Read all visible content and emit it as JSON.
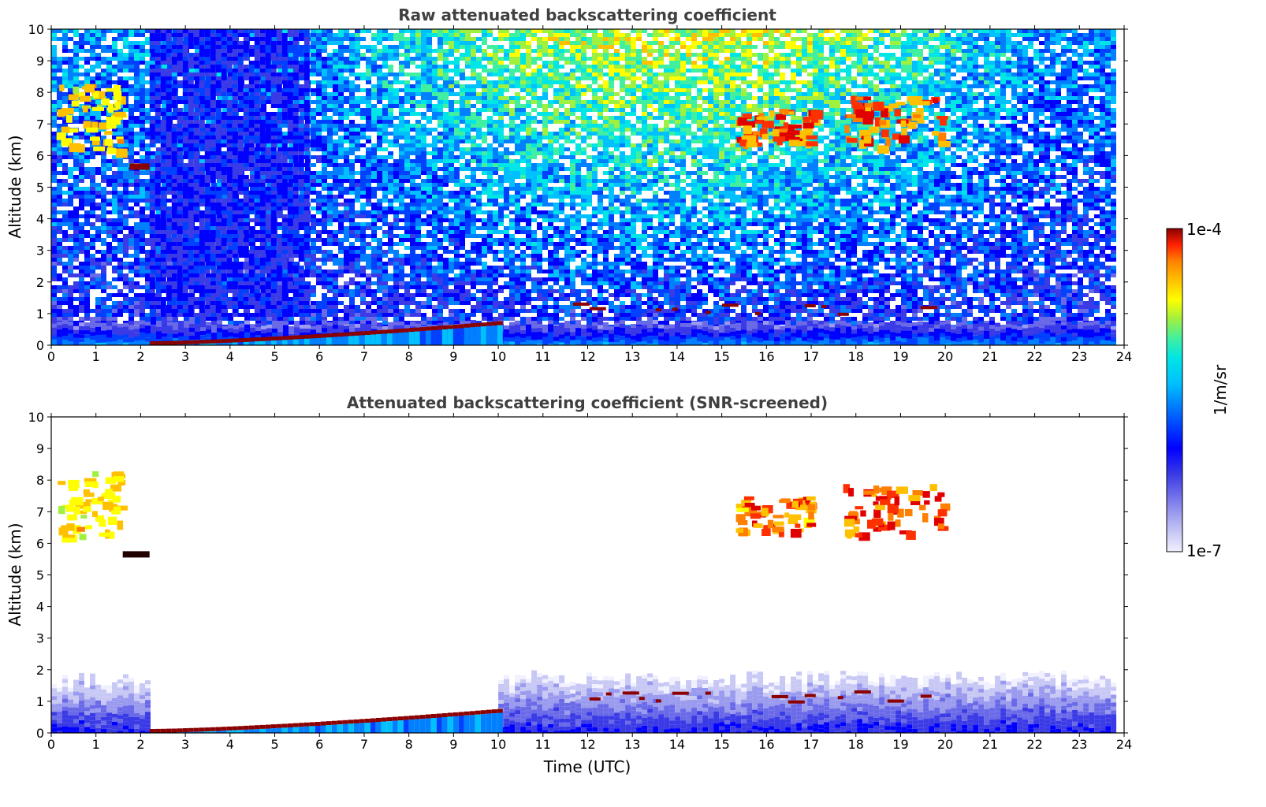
{
  "chart_data": [
    {
      "type": "heatmap",
      "title": "Raw attenuated backscattering coefficient",
      "xlabel": "",
      "ylabel": "Altitude (km)",
      "xlim": [
        0,
        24
      ],
      "ylim": [
        0,
        10
      ],
      "x_ticks": [
        "0",
        "1",
        "2",
        "3",
        "4",
        "5",
        "6",
        "7",
        "8",
        "9",
        "10",
        "11",
        "12",
        "13",
        "14",
        "15",
        "16",
        "17",
        "18",
        "19",
        "20",
        "21",
        "22",
        "23",
        "24"
      ],
      "y_ticks": [
        "0",
        "1",
        "2",
        "3",
        "4",
        "5",
        "6",
        "7",
        "8",
        "9",
        "10"
      ],
      "grid": false,
      "data_extent_hours": [
        0,
        23.8
      ],
      "features": [
        {
          "kind": "background_noise",
          "x": [
            0,
            23.8
          ],
          "y": [
            0,
            10
          ],
          "level": "low-to-moderate, increases with altitude during daytime"
        },
        {
          "kind": "boundary_layer",
          "x": [
            0,
            23.8
          ],
          "y": [
            0,
            0.8
          ],
          "level": "moderate"
        },
        {
          "kind": "cloud_layer",
          "x": [
            1.75,
            2.2
          ],
          "y": [
            5.55,
            5.75
          ],
          "level": "strong"
        },
        {
          "kind": "low_signal_block",
          "x": [
            2.2,
            5.7
          ],
          "y": [
            1.0,
            10
          ],
          "level": "low"
        },
        {
          "kind": "boundary_layer_top",
          "x": [
            2.2,
            10.0
          ],
          "y": [
            0.05,
            0.7
          ],
          "level": "strong"
        },
        {
          "kind": "cirrus",
          "x": [
            0.1,
            1.5
          ],
          "y": [
            6.2,
            8.3
          ],
          "level": "moderate"
        },
        {
          "kind": "cirrus",
          "x": [
            15.3,
            17.0
          ],
          "y": [
            6.4,
            7.5
          ],
          "level": "strong"
        },
        {
          "kind": "cirrus",
          "x": [
            17.7,
            19.9
          ],
          "y": [
            6.3,
            7.9
          ],
          "level": "strong"
        },
        {
          "kind": "cloud_bases",
          "x": [
            11.3,
            19.5
          ],
          "y": [
            1.0,
            1.35
          ],
          "level": "strong"
        }
      ]
    },
    {
      "type": "heatmap",
      "title": "Attenuated backscattering coefficient (SNR-screened)",
      "xlabel": "Time (UTC)",
      "ylabel": "Altitude (km)",
      "xlim": [
        0,
        24
      ],
      "ylim": [
        0,
        10
      ],
      "x_ticks": [
        "0",
        "1",
        "2",
        "3",
        "4",
        "5",
        "6",
        "7",
        "8",
        "9",
        "10",
        "11",
        "12",
        "13",
        "14",
        "15",
        "16",
        "17",
        "18",
        "19",
        "20",
        "21",
        "22",
        "23",
        "24"
      ],
      "y_ticks": [
        "0",
        "1",
        "2",
        "3",
        "4",
        "5",
        "6",
        "7",
        "8",
        "9",
        "10"
      ],
      "grid": false,
      "data_extent_hours": [
        0,
        23.8
      ],
      "features": [
        {
          "kind": "boundary_layer",
          "x": [
            0,
            2.2
          ],
          "y": [
            0,
            1.9
          ],
          "level": "low"
        },
        {
          "kind": "boundary_layer",
          "x": [
            10.0,
            23.8
          ],
          "y": [
            0,
            2.0
          ],
          "level": "low"
        },
        {
          "kind": "boundary_layer_top",
          "x": [
            2.2,
            10.0
          ],
          "y": [
            0.05,
            0.7
          ],
          "level": "strong"
        },
        {
          "kind": "cloud_layer",
          "x": [
            1.6,
            2.2
          ],
          "y": [
            5.55,
            5.75
          ],
          "level": "very strong"
        },
        {
          "kind": "cirrus",
          "x": [
            0.1,
            1.5
          ],
          "y": [
            6.2,
            8.3
          ],
          "level": "moderate"
        },
        {
          "kind": "cirrus",
          "x": [
            15.3,
            17.0
          ],
          "y": [
            6.4,
            7.5
          ],
          "level": "strong"
        },
        {
          "kind": "cirrus",
          "x": [
            17.7,
            19.9
          ],
          "y": [
            6.3,
            7.9
          ],
          "level": "strong"
        },
        {
          "kind": "cloud_bases",
          "x": [
            11.3,
            19.5
          ],
          "y": [
            1.0,
            1.35
          ],
          "level": "strong"
        }
      ]
    }
  ],
  "colorbar": {
    "label": "1/m/sr",
    "max_label": "1e-4",
    "min_label": "1e-7",
    "scale": "log",
    "colormap": [
      "#f0f0ff",
      "#c8c8f5",
      "#9a9aee",
      "#6a6ae8",
      "#3a3ae6",
      "#0000ff",
      "#0040ff",
      "#0080ff",
      "#00c0ff",
      "#00e5e5",
      "#40f0a0",
      "#a0f040",
      "#ffff00",
      "#ffc000",
      "#ff8000",
      "#ff3000",
      "#e00000",
      "#8b0000"
    ]
  }
}
